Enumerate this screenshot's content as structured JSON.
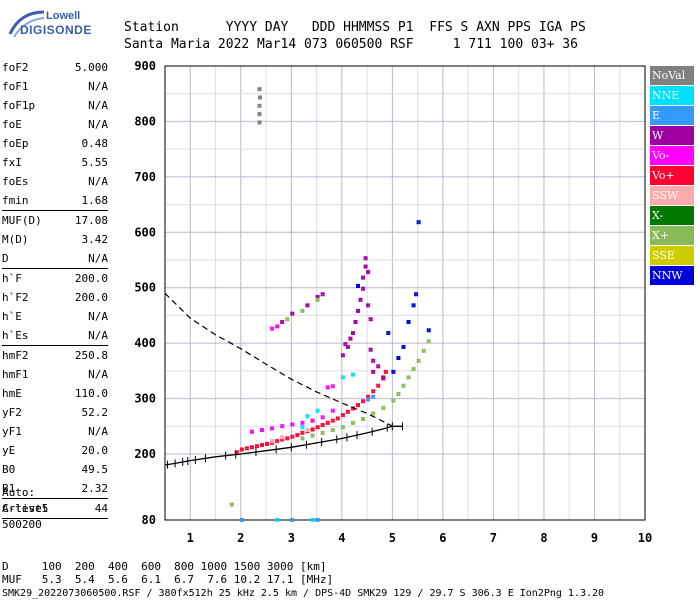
{
  "logo": {
    "line1": "Lowell",
    "line2": "DIGISONDE"
  },
  "header": {
    "line1": "Station      YYYY DAY   DDD HHMMSS P1  FFS S AXN PPS IGA PS",
    "line2": "Santa Maria 2022 Mar14 073 060500 RSF     1 711 100 03+ 36"
  },
  "params": {
    "group1": [
      {
        "k": "foF2",
        "v": "5.000"
      },
      {
        "k": "foF1",
        "v": "N/A"
      },
      {
        "k": "foF1p",
        "v": "N/A"
      },
      {
        "k": "foE",
        "v": "N/A"
      },
      {
        "k": "foEp",
        "v": "0.48"
      },
      {
        "k": "fxI",
        "v": "5.55"
      },
      {
        "k": "foEs",
        "v": "N/A"
      },
      {
        "k": "fmin",
        "v": "1.68"
      }
    ],
    "group2": [
      {
        "k": "MUF(D)",
        "v": "17.08"
      },
      {
        "k": "M(D)",
        "v": "3.42"
      },
      {
        "k": "D",
        "v": "N/A"
      }
    ],
    "group3": [
      {
        "k": "h`F",
        "v": "200.0"
      },
      {
        "k": "h`F2",
        "v": "200.0"
      },
      {
        "k": "h`E",
        "v": "N/A"
      },
      {
        "k": "h`Es",
        "v": "N/A"
      }
    ],
    "group4": [
      {
        "k": "hmF2",
        "v": "250.8"
      },
      {
        "k": "hmF1",
        "v": "N/A"
      },
      {
        "k": "hmE",
        "v": "110.0"
      },
      {
        "k": "yF2",
        "v": "52.2"
      },
      {
        "k": "yF1",
        "v": "N/A"
      },
      {
        "k": "yE",
        "v": "20.0"
      },
      {
        "k": "B0",
        "v": "49.5"
      },
      {
        "k": "B1",
        "v": "2.32"
      }
    ],
    "group5": [
      {
        "k": "C-level",
        "v": "44"
      }
    ]
  },
  "auto": {
    "line1": "Auto:",
    "line2": "Artist5",
    "line3": "500200"
  },
  "legend": [
    {
      "label": "NoVal",
      "color": "#808080"
    },
    {
      "label": "NNE",
      "color": "#00e0ff"
    },
    {
      "label": "E",
      "color": "#3399ff"
    },
    {
      "label": "W",
      "color": "#a000a0"
    },
    {
      "label": "Vo-",
      "color": "#ff00ff"
    },
    {
      "label": "Vo+",
      "color": "#ff0033"
    },
    {
      "label": "SSW",
      "color": "#ffaaaa"
    },
    {
      "label": "X-",
      "color": "#007700"
    },
    {
      "label": "X+",
      "color": "#88bb55"
    },
    {
      "label": "SSE",
      "color": "#cccc00"
    },
    {
      "label": "NNW",
      "color": "#0000dd"
    }
  ],
  "footer": {
    "row1": "D     100  200  400  600  800 1000 1500 3000 [km]",
    "row2": "MUF   5.3  5.4  5.6  6.1  6.7  7.6 10.2 17.1 [MHz]",
    "row3": "SMK29_2022073060500.RSF / 380fx512h 25 kHz 2.5 km / DPS-4D SMK29 129 / 29.7 S 306.3 E Ion2Png 1.3.20"
  },
  "chart_data": {
    "type": "scatter",
    "xlim": [
      0.5,
      10
    ],
    "ylim": [
      80,
      900
    ],
    "xticks": [
      1,
      2,
      3,
      4,
      5,
      6,
      7,
      8,
      9,
      10
    ],
    "yticks": [
      80,
      200,
      300,
      400,
      500,
      600,
      700,
      800,
      900
    ],
    "grid": true,
    "legend_position": "right",
    "series": [
      {
        "name": "NoVal",
        "color": "#808080",
        "points": [
          [
            2.35,
            800
          ],
          [
            2.35,
            830
          ],
          [
            2.35,
            860
          ],
          [
            2.36,
            845
          ],
          [
            2.35,
            815
          ]
        ]
      },
      {
        "name": "Vo+",
        "color": "#ff0033",
        "points": [
          [
            1.9,
            205
          ],
          [
            2.0,
            210
          ],
          [
            2.1,
            212
          ],
          [
            2.2,
            214
          ],
          [
            2.3,
            216
          ],
          [
            2.4,
            218
          ],
          [
            2.5,
            220
          ],
          [
            2.6,
            222
          ],
          [
            2.7,
            225
          ],
          [
            2.8,
            228
          ],
          [
            2.9,
            230
          ],
          [
            3.0,
            233
          ],
          [
            3.1,
            236
          ],
          [
            3.2,
            240
          ],
          [
            3.3,
            243
          ],
          [
            3.4,
            246
          ],
          [
            3.5,
            250
          ],
          [
            3.6,
            254
          ],
          [
            3.7,
            258
          ],
          [
            3.8,
            262
          ],
          [
            3.9,
            266
          ],
          [
            4.0,
            272
          ],
          [
            4.1,
            278
          ],
          [
            4.2,
            284
          ],
          [
            4.3,
            290
          ],
          [
            4.4,
            297
          ],
          [
            4.5,
            305
          ],
          [
            4.6,
            315
          ],
          [
            4.7,
            325
          ],
          [
            4.8,
            338
          ],
          [
            4.85,
            350
          ]
        ]
      },
      {
        "name": "W",
        "color": "#a000a0",
        "points": [
          [
            4.0,
            380
          ],
          [
            4.05,
            400
          ],
          [
            4.1,
            395
          ],
          [
            4.15,
            410
          ],
          [
            4.2,
            420
          ],
          [
            4.25,
            440
          ],
          [
            4.3,
            460
          ],
          [
            4.35,
            480
          ],
          [
            4.4,
            500
          ],
          [
            4.4,
            520
          ],
          [
            4.45,
            540
          ],
          [
            4.45,
            555
          ],
          [
            4.5,
            530
          ],
          [
            4.5,
            470
          ],
          [
            4.55,
            445
          ],
          [
            4.55,
            390
          ],
          [
            4.6,
            370
          ],
          [
            4.6,
            350
          ],
          [
            4.7,
            360
          ],
          [
            4.8,
            340
          ],
          [
            2.8,
            440
          ],
          [
            3.0,
            455
          ],
          [
            3.3,
            470
          ],
          [
            3.5,
            485
          ],
          [
            3.6,
            490
          ]
        ]
      },
      {
        "name": "Vo-",
        "color": "#ff00ff",
        "points": [
          [
            2.2,
            242
          ],
          [
            2.4,
            245
          ],
          [
            2.6,
            248
          ],
          [
            2.8,
            252
          ],
          [
            3.0,
            255
          ],
          [
            3.2,
            258
          ],
          [
            3.4,
            262
          ],
          [
            3.6,
            268
          ],
          [
            3.8,
            280
          ],
          [
            3.7,
            322
          ],
          [
            3.8,
            324
          ],
          [
            2.6,
            428
          ],
          [
            2.7,
            432
          ]
        ]
      },
      {
        "name": "X+",
        "color": "#88bb55",
        "points": [
          [
            3.2,
            230
          ],
          [
            3.4,
            235
          ],
          [
            3.6,
            240
          ],
          [
            3.8,
            245
          ],
          [
            4.0,
            250
          ],
          [
            4.2,
            258
          ],
          [
            4.4,
            265
          ],
          [
            4.6,
            275
          ],
          [
            4.8,
            285
          ],
          [
            5.0,
            298
          ],
          [
            5.1,
            310
          ],
          [
            5.2,
            325
          ],
          [
            5.3,
            340
          ],
          [
            5.4,
            355
          ],
          [
            5.5,
            370
          ],
          [
            5.6,
            388
          ],
          [
            5.7,
            405
          ],
          [
            2.9,
            445
          ],
          [
            3.2,
            460
          ],
          [
            3.5,
            480
          ],
          [
            1.8,
            110
          ]
        ]
      },
      {
        "name": "NNW",
        "color": "#0000dd",
        "points": [
          [
            4.3,
            505
          ],
          [
            5.0,
            350
          ],
          [
            5.1,
            375
          ],
          [
            5.2,
            395
          ],
          [
            5.3,
            440
          ],
          [
            5.4,
            470
          ],
          [
            5.45,
            490
          ],
          [
            5.7,
            425
          ],
          [
            4.9,
            420
          ],
          [
            5.5,
            620
          ]
        ]
      },
      {
        "name": "NNE",
        "color": "#00e0ff",
        "points": [
          [
            4.0,
            340
          ],
          [
            4.2,
            345
          ],
          [
            3.3,
            270
          ],
          [
            3.5,
            280
          ],
          [
            3.2,
            250
          ],
          [
            2.7,
            82
          ],
          [
            3.4,
            82
          ]
        ]
      },
      {
        "name": "E",
        "color": "#3399ff",
        "points": [
          [
            4.5,
            300
          ],
          [
            4.6,
            305
          ],
          [
            2.0,
            82
          ],
          [
            3.0,
            82
          ],
          [
            3.5,
            82
          ]
        ]
      },
      {
        "name": "SSW",
        "color": "#ffaaaa",
        "points": [
          [
            2.6,
            225
          ],
          [
            2.8,
            232
          ],
          [
            3.3,
            245
          ]
        ]
      }
    ],
    "profile": [
      [
        0.5,
        490
      ],
      [
        1.0,
        445
      ],
      [
        1.5,
        415
      ],
      [
        2.0,
        390
      ],
      [
        2.5,
        362
      ],
      [
        3.0,
        335
      ],
      [
        3.5,
        312
      ],
      [
        4.0,
        292
      ],
      [
        4.5,
        273
      ],
      [
        4.9,
        255
      ],
      [
        5.0,
        250
      ]
    ],
    "trace": [
      [
        0.5,
        180
      ],
      [
        0.7,
        183
      ],
      [
        1.0,
        188
      ],
      [
        1.5,
        195
      ],
      [
        2.0,
        200
      ],
      [
        2.5,
        206
      ],
      [
        3.0,
        212
      ],
      [
        3.5,
        220
      ],
      [
        4.0,
        228
      ],
      [
        4.5,
        238
      ],
      [
        4.8,
        245
      ],
      [
        5.0,
        250
      ],
      [
        5.2,
        250
      ]
    ],
    "trace_ticks": [
      0.55,
      0.7,
      0.85,
      0.95,
      1.1,
      1.3,
      1.7,
      1.9,
      2.3,
      2.7,
      3.0,
      3.3,
      3.6,
      3.9,
      4.1,
      4.3,
      4.6,
      4.9,
      5.0,
      5.2
    ]
  }
}
